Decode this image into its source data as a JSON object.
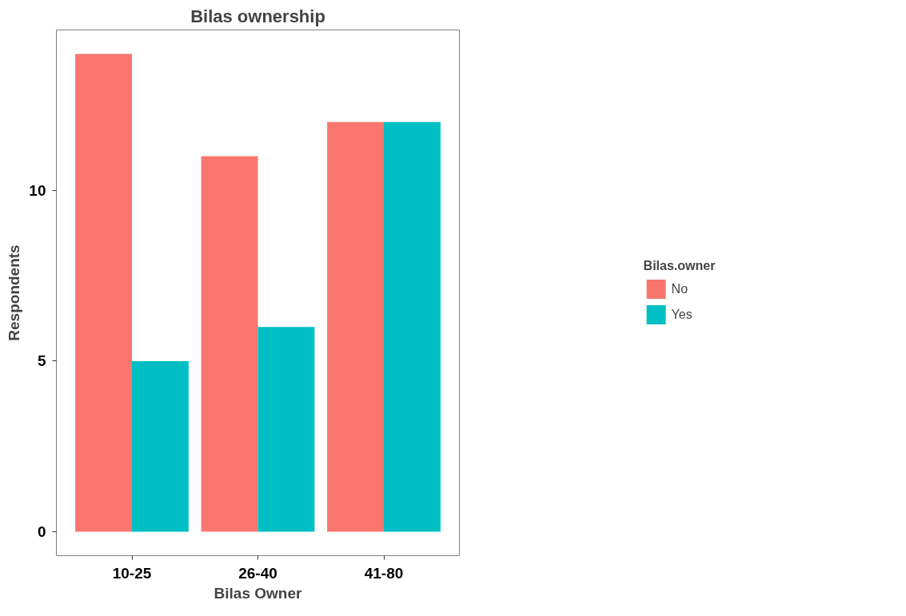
{
  "chart_data": {
    "type": "bar",
    "title": "Bilas ownership",
    "xlabel": "Bilas Owner",
    "ylabel": "Respondents",
    "legend_title": "Bilas.owner",
    "categories": [
      "10-25",
      "26-40",
      "41-80"
    ],
    "series": [
      {
        "name": "No",
        "color": "#f8766d",
        "values": [
          14,
          11,
          12
        ]
      },
      {
        "name": "Yes",
        "color": "#00bfc4",
        "values": [
          5,
          6,
          12
        ]
      }
    ],
    "ylim": [
      -0.7,
      14.7
    ],
    "yticks": [
      0,
      5,
      10
    ],
    "grid": false,
    "legend": "right"
  }
}
